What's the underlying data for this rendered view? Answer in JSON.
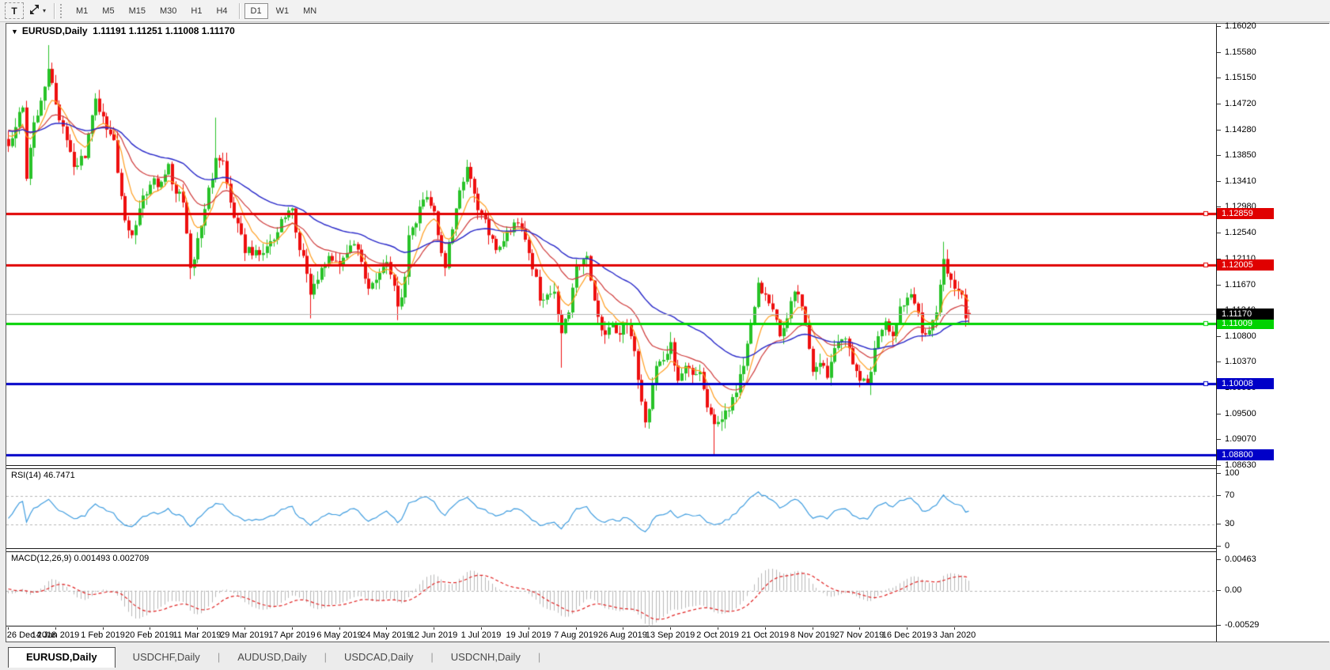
{
  "toolbar": {
    "text_tool_label": "T",
    "caret_glyph": "▾",
    "timeframes": [
      "M1",
      "M5",
      "M15",
      "M30",
      "H1",
      "H4",
      "D1",
      "W1",
      "MN"
    ],
    "active_timeframe": "D1"
  },
  "chart": {
    "collapse_glyph": "▼",
    "symbol_period": "EURUSD,Daily",
    "ohlc_text": "1.11191 1.11251 1.11008 1.11170"
  },
  "price_axis": {
    "ticks": [
      "1.16020",
      "1.15580",
      "1.15150",
      "1.14720",
      "1.14280",
      "1.13850",
      "1.13410",
      "1.12980",
      "1.12540",
      "1.12110",
      "1.11670",
      "1.11240",
      "1.10800",
      "1.10370",
      "1.09930",
      "1.09500",
      "1.09070",
      "1.08630"
    ]
  },
  "hlines": [
    {
      "price": 1.12859,
      "label": "1.12859",
      "color": "#e00000",
      "width": 3,
      "handle": true
    },
    {
      "price": 1.12005,
      "label": "1.12005",
      "color": "#e00000",
      "width": 3,
      "handle": true
    },
    {
      "price": 1.11009,
      "label": "1.11009",
      "color": "#00d200",
      "width": 3,
      "handle": true
    },
    {
      "price": 1.10008,
      "label": "1.10008",
      "color": "#0000c8",
      "width": 3,
      "handle": true
    },
    {
      "price": 1.088,
      "label": "1.08800",
      "color": "#0000c8",
      "width": 3,
      "handle": false
    }
  ],
  "current_price": {
    "price": 1.1117,
    "label": "1.11170",
    "line_color": "#b4b4b4",
    "badge_bg": "#000000"
  },
  "rsi": {
    "label": "RSI(14) 46.7471",
    "period": 14,
    "value": 46.7471,
    "scale": [
      {
        "v": 100,
        "label": "100"
      },
      {
        "v": 70,
        "label": "70"
      },
      {
        "v": 30,
        "label": "30"
      },
      {
        "v": 0,
        "label": "0"
      }
    ],
    "dashed_levels": [
      70,
      30
    ]
  },
  "macd": {
    "label": "MACD(12,26,9) 0.001493 0.002709",
    "fast": 12,
    "slow": 26,
    "signal": 9,
    "macd_value": 0.001493,
    "signal_value": 0.002709,
    "scale": [
      {
        "v": 0.00463,
        "label": "0.00463"
      },
      {
        "v": 0,
        "label": "0.00"
      },
      {
        "v": -0.00529,
        "label": "-0.00529"
      }
    ],
    "dashed_levels": [
      0
    ]
  },
  "date_axis": {
    "labels": [
      {
        "text": "26 Dec 2018",
        "i": 0
      },
      {
        "text": "14 Jan 2019",
        "i": 13
      },
      {
        "text": "1 Feb 2019",
        "i": 26
      },
      {
        "text": "20 Feb 2019",
        "i": 39
      },
      {
        "text": "11 Mar 2019",
        "i": 52
      },
      {
        "text": "29 Mar 2019",
        "i": 65
      },
      {
        "text": "17 Apr 2019",
        "i": 78
      },
      {
        "text": "6 May 2019",
        "i": 91
      },
      {
        "text": "24 May 2019",
        "i": 104
      },
      {
        "text": "12 Jun 2019",
        "i": 117
      },
      {
        "text": "1 Jul 2019",
        "i": 130
      },
      {
        "text": "19 Jul 2019",
        "i": 143
      },
      {
        "text": "7 Aug 2019",
        "i": 156
      },
      {
        "text": "26 Aug 2019",
        "i": 169
      },
      {
        "text": "13 Sep 2019",
        "i": 182
      },
      {
        "text": "2 Oct 2019",
        "i": 195
      },
      {
        "text": "21 Oct 2019",
        "i": 208
      },
      {
        "text": "8 Nov 2019",
        "i": 221
      },
      {
        "text": "27 Nov 2019",
        "i": 234
      },
      {
        "text": "16 Dec 2019",
        "i": 247
      },
      {
        "text": "3 Jan 2020",
        "i": 260
      }
    ]
  },
  "tabs": [
    {
      "label": "EURUSD,Daily",
      "active": true
    },
    {
      "label": "USDCHF,Daily",
      "active": false
    },
    {
      "label": "AUDUSD,Daily",
      "active": false
    },
    {
      "label": "USDCAD,Daily",
      "active": false
    },
    {
      "label": "USDCNH,Daily",
      "active": false
    }
  ],
  "colors": {
    "bull": "#28c228",
    "bear": "#ee0f0f",
    "ma_fast": "#ff9d1e",
    "ma_mid": "#cf3a3a",
    "ma_slow": "#2626c8",
    "rsi_line": "#3e9cdf",
    "rsi_dash": "#b4b4b4",
    "macd_hist": "#b8b8b8",
    "macd_signal": "#e02020",
    "macd_dash": "#b4b4b4"
  },
  "chart_data": {
    "type": "candlestick",
    "symbol": "EURUSD",
    "timeframe": "Daily",
    "visible_range": {
      "first_date": "26 Dec 2018",
      "last_date": "3 Jan 2020",
      "price_min": 1.0863,
      "price_max": 1.1602
    },
    "last_candle": {
      "open": 1.11191,
      "high": 1.11251,
      "low": 1.11008,
      "close": 1.1117
    },
    "ma_periods": {
      "fast": 8,
      "mid": 21,
      "slow": 50
    },
    "anchors": [
      [
        0,
        1.14
      ],
      [
        2,
        1.1432
      ],
      [
        4,
        1.1465
      ],
      [
        5,
        1.1345
      ],
      [
        7,
        1.144
      ],
      [
        10,
        1.15
      ],
      [
        11,
        1.153
      ],
      [
        13,
        1.147
      ],
      [
        16,
        1.141
      ],
      [
        18,
        1.1365
      ],
      [
        21,
        1.138
      ],
      [
        24,
        1.148
      ],
      [
        26,
        1.145
      ],
      [
        29,
        1.141
      ],
      [
        32,
        1.1275
      ],
      [
        34,
        1.125
      ],
      [
        36,
        1.1295
      ],
      [
        39,
        1.1335
      ],
      [
        42,
        1.134
      ],
      [
        44,
        1.137
      ],
      [
        46,
        1.132
      ],
      [
        48,
        1.1305
      ],
      [
        50,
        1.1195
      ],
      [
        52,
        1.1245
      ],
      [
        55,
        1.133
      ],
      [
        57,
        1.138
      ],
      [
        59,
        1.1375
      ],
      [
        61,
        1.1305
      ],
      [
        63,
        1.127
      ],
      [
        65,
        1.122
      ],
      [
        68,
        1.1225
      ],
      [
        70,
        1.122
      ],
      [
        72,
        1.124
      ],
      [
        74,
        1.1255
      ],
      [
        76,
        1.128
      ],
      [
        78,
        1.1295
      ],
      [
        80,
        1.1225
      ],
      [
        82,
        1.1185
      ],
      [
        83,
        1.115
      ],
      [
        85,
        1.1175
      ],
      [
        86,
        1.1195
      ],
      [
        88,
        1.1215
      ],
      [
        91,
        1.12
      ],
      [
        93,
        1.122
      ],
      [
        95,
        1.1235
      ],
      [
        97,
        1.1205
      ],
      [
        99,
        1.116
      ],
      [
        101,
        1.1175
      ],
      [
        104,
        1.1205
      ],
      [
        106,
        1.1165
      ],
      [
        107,
        1.113
      ],
      [
        109,
        1.118
      ],
      [
        110,
        1.125
      ],
      [
        112,
        1.127
      ],
      [
        114,
        1.131
      ],
      [
        117,
        1.129
      ],
      [
        119,
        1.122
      ],
      [
        120,
        1.1195
      ],
      [
        122,
        1.126
      ],
      [
        123,
        1.1295
      ],
      [
        125,
        1.134
      ],
      [
        126,
        1.1365
      ],
      [
        128,
        1.132
      ],
      [
        130,
        1.1285
      ],
      [
        132,
        1.125
      ],
      [
        134,
        1.1225
      ],
      [
        136,
        1.124
      ],
      [
        138,
        1.1255
      ],
      [
        140,
        1.127
      ],
      [
        143,
        1.122
      ],
      [
        145,
        1.118
      ],
      [
        146,
        1.114
      ],
      [
        148,
        1.115
      ],
      [
        150,
        1.1155
      ],
      [
        152,
        1.1085
      ],
      [
        154,
        1.112
      ],
      [
        156,
        1.12
      ],
      [
        158,
        1.121
      ],
      [
        159,
        1.1215
      ],
      [
        161,
        1.114
      ],
      [
        163,
        1.109
      ],
      [
        165,
        1.1095
      ],
      [
        167,
        1.1085
      ],
      [
        169,
        1.11
      ],
      [
        171,
        1.108
      ],
      [
        172,
        1.1055
      ],
      [
        174,
        1.097
      ],
      [
        175,
        1.0935
      ],
      [
        177,
        1.1
      ],
      [
        178,
        1.103
      ],
      [
        180,
        1.104
      ],
      [
        182,
        1.107
      ],
      [
        184,
        1.1005
      ],
      [
        186,
        1.103
      ],
      [
        188,
        1.1015
      ],
      [
        190,
        1.102
      ],
      [
        192,
        1.096
      ],
      [
        194,
        1.0932
      ],
      [
        196,
        1.094
      ],
      [
        198,
        1.0955
      ],
      [
        200,
        1.0985
      ],
      [
        202,
        1.103
      ],
      [
        204,
        1.11
      ],
      [
        206,
        1.117
      ],
      [
        208,
        1.115
      ],
      [
        210,
        1.1125
      ],
      [
        212,
        1.108
      ],
      [
        214,
        1.111
      ],
      [
        216,
        1.1155
      ],
      [
        218,
        1.113
      ],
      [
        221,
        1.102
      ],
      [
        223,
        1.1035
      ],
      [
        225,
        1.101
      ],
      [
        227,
        1.106
      ],
      [
        229,
        1.1075
      ],
      [
        231,
        1.106
      ],
      [
        234,
        1.1005
      ],
      [
        236,
        1.1
      ],
      [
        237,
        1.102
      ],
      [
        239,
        1.108
      ],
      [
        241,
        1.1105
      ],
      [
        243,
        1.108
      ],
      [
        245,
        1.113
      ],
      [
        247,
        1.1145
      ],
      [
        249,
        1.1135
      ],
      [
        250,
        1.112
      ],
      [
        251,
        1.1085
      ],
      [
        253,
        1.109
      ],
      [
        255,
        1.112
      ],
      [
        257,
        1.121
      ],
      [
        259,
        1.1175
      ],
      [
        260,
        1.116
      ],
      [
        262,
        1.115
      ],
      [
        263,
        1.111
      ],
      [
        264,
        1.1117
      ]
    ],
    "spikes": [
      {
        "i": 11,
        "high": 1.157
      },
      {
        "i": 50,
        "low": 1.1176
      },
      {
        "i": 57,
        "high": 1.1448
      },
      {
        "i": 83,
        "low": 1.111
      },
      {
        "i": 107,
        "low": 1.1107
      },
      {
        "i": 152,
        "low": 1.1027
      },
      {
        "i": 175,
        "low": 1.0926
      },
      {
        "i": 182,
        "high": 1.1087
      },
      {
        "i": 194,
        "low": 1.0879
      },
      {
        "i": 206,
        "high": 1.1179
      },
      {
        "i": 237,
        "low": 1.0981
      },
      {
        "i": 257,
        "high": 1.1239
      }
    ]
  }
}
